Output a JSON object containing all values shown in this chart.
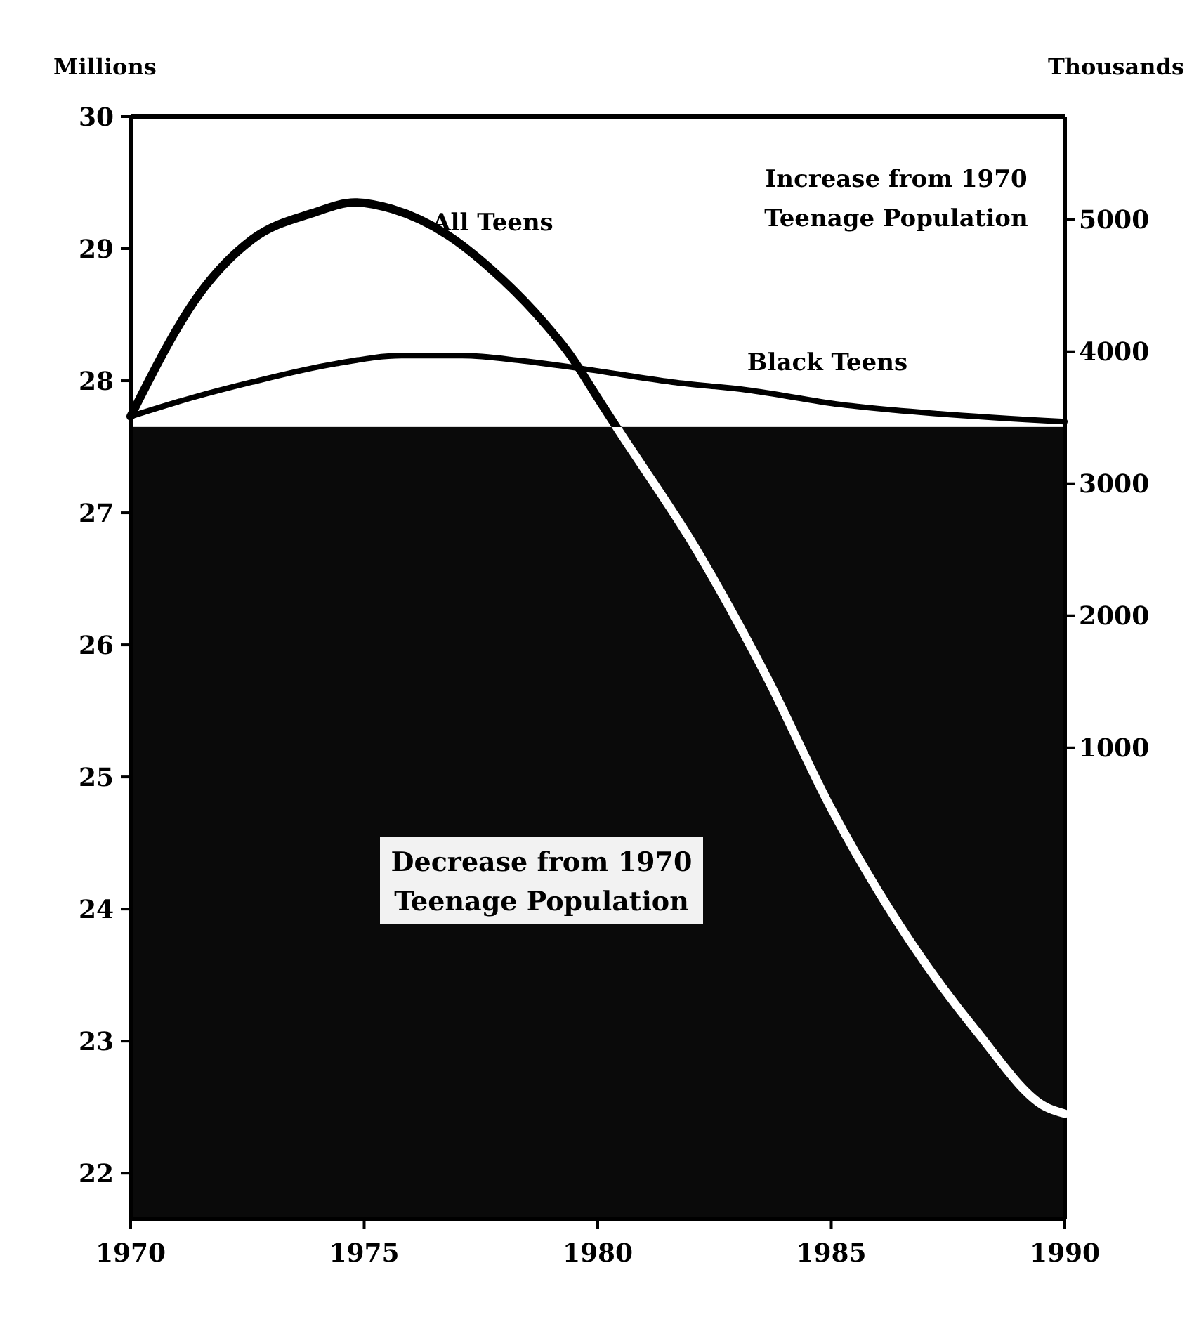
{
  "chart_data": {
    "type": "line",
    "ylabel": "Millions",
    "y2label": "Thousands",
    "xlim": [
      1970,
      1990
    ],
    "xticks": [
      1970,
      1975,
      1980,
      1985,
      1990
    ],
    "ylim": [
      21.65,
      30
    ],
    "yticks": [
      22,
      23,
      24,
      25,
      26,
      27,
      28,
      29,
      30
    ],
    "y2lim": [
      -2570,
      5780
    ],
    "y2ticks": [
      1000,
      2000,
      3000,
      4000,
      5000
    ],
    "grid": false,
    "line_style": "solid",
    "marker": "none",
    "series": [
      {
        "name": "All Teens",
        "color": "#000000",
        "x": [
          1970,
          1971.5,
          1972.6,
          1973.9,
          1974.8,
          1975.6,
          1976.8,
          1977.7,
          1978.7,
          1979.4,
          1980,
          1980.4,
          1982.1,
          1983.6,
          1985,
          1986.7,
          1988.1,
          1989.6,
          1990
        ],
        "values": [
          27.73,
          28.67,
          29.07,
          29.27,
          29.35,
          29.3,
          29.1,
          28.85,
          28.5,
          28.2,
          27.87,
          27.65,
          26.73,
          25.77,
          24.76,
          23.75,
          23.08,
          22.5,
          22.45
        ]
      },
      {
        "name": "Black Teens",
        "color": "#000000",
        "axis": "y2",
        "x": [
          1970,
          1971.3,
          1972.6,
          1974.4,
          1975.8,
          1977.1,
          1978.4,
          1979.7,
          1981.6,
          1983.2,
          1985.2,
          1987.3,
          1990
        ],
        "values": [
          3510,
          3650,
          3770,
          3910,
          3970,
          3970,
          3930,
          3870,
          3770,
          3710,
          3600,
          3530,
          3470
        ]
      }
    ],
    "bands": [
      {
        "axis": "y",
        "from": 21.65,
        "to": 27.65,
        "label": "Decrease from 1970 Teenage Population",
        "color": "#0a0a0a"
      }
    ],
    "annotations": [
      "Increase from 1970 Teenage Population"
    ]
  }
}
